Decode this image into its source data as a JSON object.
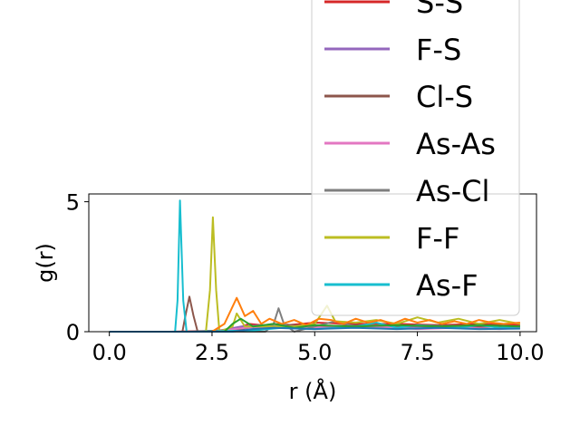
{
  "chart_data": {
    "type": "line",
    "title": "",
    "xlabel": "r (Å)",
    "ylabel": "g(r)",
    "xlim": [
      -0.5,
      10.4
    ],
    "ylim": [
      0,
      5.3
    ],
    "xticks": [
      0.0,
      2.5,
      5.0,
      7.5,
      10.0
    ],
    "xtick_labels": [
      "0.0",
      "2.5",
      "5.0",
      "7.5",
      "10.0"
    ],
    "yticks": [
      0,
      5
    ],
    "ytick_labels": [
      "0",
      "5"
    ],
    "grid": false,
    "legend_position": "upper-right, extending above the axes",
    "series": [
      {
        "name": "S-S",
        "color": "#d62728",
        "points": [
          [
            0,
            0
          ],
          [
            1.5,
            0
          ],
          [
            3.0,
            0.05
          ],
          [
            3.4,
            0.3
          ],
          [
            4.0,
            0.2
          ],
          [
            5.0,
            0.35
          ],
          [
            6.0,
            0.3
          ],
          [
            7.0,
            0.3
          ],
          [
            8.0,
            0.25
          ],
          [
            9.0,
            0.3
          ],
          [
            10.0,
            0.25
          ]
        ]
      },
      {
        "name": "F-S",
        "color": "#9467bd",
        "points": [
          [
            0,
            0
          ],
          [
            2.2,
            0
          ],
          [
            2.7,
            0.05
          ],
          [
            3.2,
            0.2
          ],
          [
            3.8,
            0.25
          ],
          [
            4.5,
            0.15
          ],
          [
            5.5,
            0.2
          ],
          [
            6.5,
            0.15
          ],
          [
            7.5,
            0.2
          ],
          [
            8.5,
            0.15
          ],
          [
            9.5,
            0.2
          ],
          [
            10.0,
            0.15
          ]
        ]
      },
      {
        "name": "Cl-S",
        "color": "#8c564b",
        "points": [
          [
            0,
            0
          ],
          [
            1.78,
            0
          ],
          [
            1.85,
            0.6
          ],
          [
            1.95,
            1.35
          ],
          [
            2.05,
            0.6
          ],
          [
            2.15,
            0
          ],
          [
            3.2,
            0.1
          ],
          [
            4.0,
            0.3
          ],
          [
            5.0,
            0.2
          ],
          [
            6.0,
            0.25
          ],
          [
            7.0,
            0.2
          ],
          [
            8.0,
            0.25
          ],
          [
            9.0,
            0.2
          ],
          [
            10.0,
            0.2
          ]
        ]
      },
      {
        "name": "As-As",
        "color": "#e377c2",
        "points": [
          [
            0,
            0
          ],
          [
            2.5,
            0
          ],
          [
            3.3,
            0.15
          ],
          [
            4.5,
            0.2
          ],
          [
            5.5,
            0.15
          ],
          [
            6.5,
            0.2
          ],
          [
            7.5,
            0.1
          ],
          [
            8.5,
            0.15
          ],
          [
            9.5,
            0.1
          ],
          [
            10.0,
            0.15
          ]
        ]
      },
      {
        "name": "As-Cl",
        "color": "#7f7f7f",
        "points": [
          [
            0,
            0
          ],
          [
            3.8,
            0
          ],
          [
            4.0,
            0.3
          ],
          [
            4.12,
            0.9
          ],
          [
            4.25,
            0.3
          ],
          [
            4.5,
            0
          ],
          [
            5.0,
            0.2
          ],
          [
            5.5,
            0.4
          ],
          [
            6.0,
            0.2
          ],
          [
            7.0,
            0.25
          ],
          [
            8.0,
            0.2
          ],
          [
            9.0,
            0.25
          ],
          [
            10.0,
            0.2
          ]
        ]
      },
      {
        "name": "F-F",
        "color": "#bcbd22",
        "points": [
          [
            0,
            0
          ],
          [
            2.35,
            0
          ],
          [
            2.45,
            1.6
          ],
          [
            2.52,
            4.4
          ],
          [
            2.6,
            1.6
          ],
          [
            2.68,
            0
          ],
          [
            3.0,
            0.2
          ],
          [
            3.1,
            0.7
          ],
          [
            3.3,
            0.2
          ],
          [
            4.5,
            0.2
          ],
          [
            5.0,
            0.3
          ],
          [
            5.3,
            1.0
          ],
          [
            5.5,
            0.4
          ],
          [
            6.0,
            0.35
          ],
          [
            6.5,
            0.45
          ],
          [
            7.0,
            0.3
          ],
          [
            7.5,
            0.55
          ],
          [
            8.0,
            0.35
          ],
          [
            8.5,
            0.5
          ],
          [
            9.0,
            0.3
          ],
          [
            9.5,
            0.45
          ],
          [
            10.0,
            0.3
          ]
        ]
      },
      {
        "name": "As-F",
        "color": "#17becf",
        "points": [
          [
            0,
            0
          ],
          [
            1.6,
            0
          ],
          [
            1.66,
            1.2
          ],
          [
            1.72,
            5.05
          ],
          [
            1.8,
            1.2
          ],
          [
            1.88,
            0
          ],
          [
            3.5,
            0.05
          ],
          [
            4.2,
            0.15
          ],
          [
            5.0,
            0.1
          ],
          [
            6.0,
            0.2
          ],
          [
            6.5,
            0.35
          ],
          [
            7.0,
            0.15
          ],
          [
            7.5,
            0.25
          ],
          [
            8.0,
            0.2
          ],
          [
            8.5,
            0.15
          ],
          [
            9.0,
            0.25
          ],
          [
            9.5,
            0.15
          ],
          [
            10.0,
            0.2
          ]
        ]
      },
      {
        "color": "#ff7f0e",
        "points": [
          [
            0,
            0
          ],
          [
            2.5,
            0
          ],
          [
            2.8,
            0.3
          ],
          [
            3.1,
            1.3
          ],
          [
            3.3,
            0.6
          ],
          [
            3.5,
            0.8
          ],
          [
            3.7,
            0.3
          ],
          [
            3.9,
            0.5
          ],
          [
            4.2,
            0.3
          ],
          [
            4.5,
            0.45
          ],
          [
            4.8,
            0.25
          ],
          [
            5.1,
            0.5
          ],
          [
            5.4,
            0.45
          ],
          [
            5.7,
            0.3
          ],
          [
            6.0,
            0.5
          ],
          [
            6.3,
            0.35
          ],
          [
            6.6,
            0.45
          ],
          [
            6.9,
            0.3
          ],
          [
            7.2,
            0.5
          ],
          [
            7.5,
            0.35
          ],
          [
            7.8,
            0.45
          ],
          [
            8.1,
            0.3
          ],
          [
            8.4,
            0.4
          ],
          [
            8.7,
            0.3
          ],
          [
            9.0,
            0.45
          ],
          [
            9.3,
            0.35
          ],
          [
            9.6,
            0.3
          ],
          [
            10.0,
            0.35
          ]
        ]
      },
      {
        "color": "#2ca02c",
        "points": [
          [
            0,
            0
          ],
          [
            2.8,
            0
          ],
          [
            3.0,
            0.3
          ],
          [
            3.2,
            0.5
          ],
          [
            3.5,
            0.2
          ],
          [
            4.0,
            0.3
          ],
          [
            4.5,
            0.15
          ],
          [
            5.0,
            0.25
          ],
          [
            6.0,
            0.2
          ],
          [
            7.0,
            0.25
          ],
          [
            8.0,
            0.2
          ],
          [
            9.0,
            0.25
          ],
          [
            10.0,
            0.2
          ]
        ]
      },
      {
        "color": "#1f77b4",
        "points": [
          [
            0,
            0
          ],
          [
            3.0,
            0
          ],
          [
            3.5,
            0.1
          ],
          [
            4.0,
            0.15
          ],
          [
            5.0,
            0.1
          ],
          [
            6.0,
            0.15
          ],
          [
            7.0,
            0.1
          ],
          [
            8.0,
            0.15
          ],
          [
            9.0,
            0.1
          ],
          [
            10.0,
            0.12
          ]
        ]
      }
    ],
    "legend": [
      {
        "label": "S-S",
        "color": "#d62728"
      },
      {
        "label": "F-S",
        "color": "#9467bd"
      },
      {
        "label": "Cl-S",
        "color": "#8c564b"
      },
      {
        "label": "As-As",
        "color": "#e377c2"
      },
      {
        "label": "As-Cl",
        "color": "#7f7f7f"
      },
      {
        "label": "F-F",
        "color": "#bcbd22"
      },
      {
        "label": "As-F",
        "color": "#17becf"
      }
    ]
  }
}
